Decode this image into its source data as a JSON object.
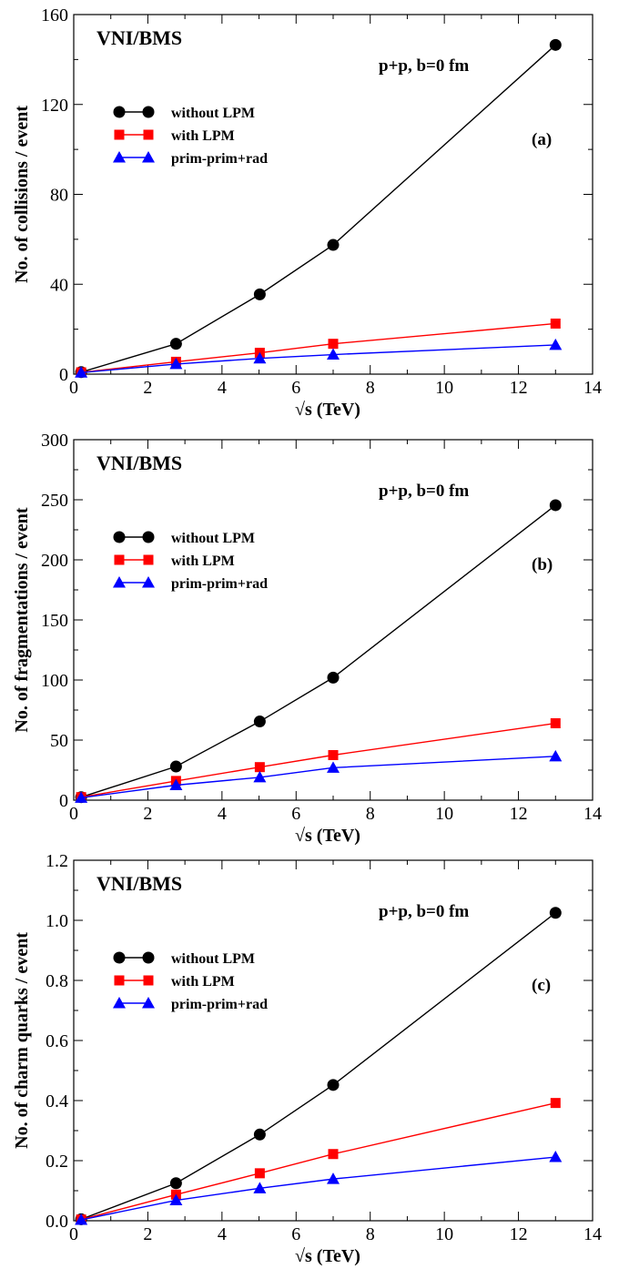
{
  "chart_data": [
    {
      "type": "line",
      "panel_label": "(a)",
      "title": "VNI/BMS",
      "subtitle": "p+p, b=0 fm",
      "xlabel": "√s (TeV)",
      "ylabel": "No. of collisions / event",
      "xlim": [
        0,
        14
      ],
      "ylim": [
        0,
        160
      ],
      "xticks": [
        0,
        2,
        4,
        6,
        8,
        10,
        12,
        14
      ],
      "yticks": [
        0,
        40,
        80,
        120,
        160
      ],
      "x": [
        0.2,
        2.76,
        5.02,
        7,
        13
      ],
      "legend_position": "left",
      "grid": false,
      "series": [
        {
          "name": "without LPM",
          "marker": "circle",
          "color": "#000000",
          "values": [
            0.9,
            13.5,
            35.5,
            57.5,
            146.5
          ]
        },
        {
          "name": "with LPM",
          "marker": "square",
          "color": "#ff0000",
          "values": [
            0.8,
            5.5,
            9.5,
            13.5,
            22.5
          ]
        },
        {
          "name": "prim-prim+rad",
          "marker": "triangle",
          "color": "#0000ff",
          "values": [
            0.7,
            4.5,
            7,
            8.7,
            13
          ]
        }
      ]
    },
    {
      "type": "line",
      "panel_label": "(b)",
      "title": "VNI/BMS",
      "subtitle": "p+p, b=0 fm",
      "xlabel": "√s (TeV)",
      "ylabel": "No. of fragmentations / event",
      "xlim": [
        0,
        14
      ],
      "ylim": [
        0,
        300
      ],
      "xticks": [
        0,
        2,
        4,
        6,
        8,
        10,
        12,
        14
      ],
      "yticks": [
        0,
        50,
        100,
        150,
        200,
        250,
        300
      ],
      "x": [
        0.2,
        2.76,
        5.02,
        7,
        13
      ],
      "legend_position": "left",
      "grid": false,
      "series": [
        {
          "name": " without LPM",
          "marker": "circle",
          "color": "#000000",
          "values": [
            2.5,
            28,
            65.5,
            102,
            245.5
          ]
        },
        {
          "name": "with LPM",
          "marker": "square",
          "color": "#ff0000",
          "values": [
            2.5,
            16,
            27.5,
            37.5,
            64
          ]
        },
        {
          "name": "prim-prim+rad",
          "marker": "triangle",
          "color": "#0000ff",
          "values": [
            2,
            12.5,
            19,
            27,
            36.5
          ]
        }
      ]
    },
    {
      "type": "line",
      "panel_label": "(c)",
      "title": "VNI/BMS",
      "subtitle": "p+p, b=0 fm",
      "xlabel": "√s (TeV)",
      "ylabel": "No. of charm quarks / event",
      "xlim": [
        0,
        14
      ],
      "ylim": [
        0,
        1.2
      ],
      "xticks": [
        0,
        2,
        4,
        6,
        8,
        10,
        12,
        14
      ],
      "yticks": [
        0.0,
        0.2,
        0.4,
        0.6,
        0.8,
        1.0,
        1.2
      ],
      "ytick_labels": [
        "0.0",
        "0.2",
        "0.4",
        "0.6",
        "0.8",
        "1.0",
        "1.2"
      ],
      "x": [
        0.2,
        2.76,
        5.02,
        7,
        13
      ],
      "legend_position": "left",
      "grid": false,
      "series": [
        {
          "name": "without LPM",
          "marker": "circle",
          "color": "#000000",
          "values": [
            0.005,
            0.125,
            0.287,
            0.452,
            1.025
          ]
        },
        {
          "name": "with LPM",
          "marker": "square",
          "color": "#ff0000",
          "values": [
            0.004,
            0.087,
            0.158,
            0.222,
            0.392
          ]
        },
        {
          "name": "prim-prim+rad",
          "marker": "triangle",
          "color": "#0000ff",
          "values": [
            0.003,
            0.068,
            0.108,
            0.139,
            0.212
          ]
        }
      ]
    }
  ]
}
